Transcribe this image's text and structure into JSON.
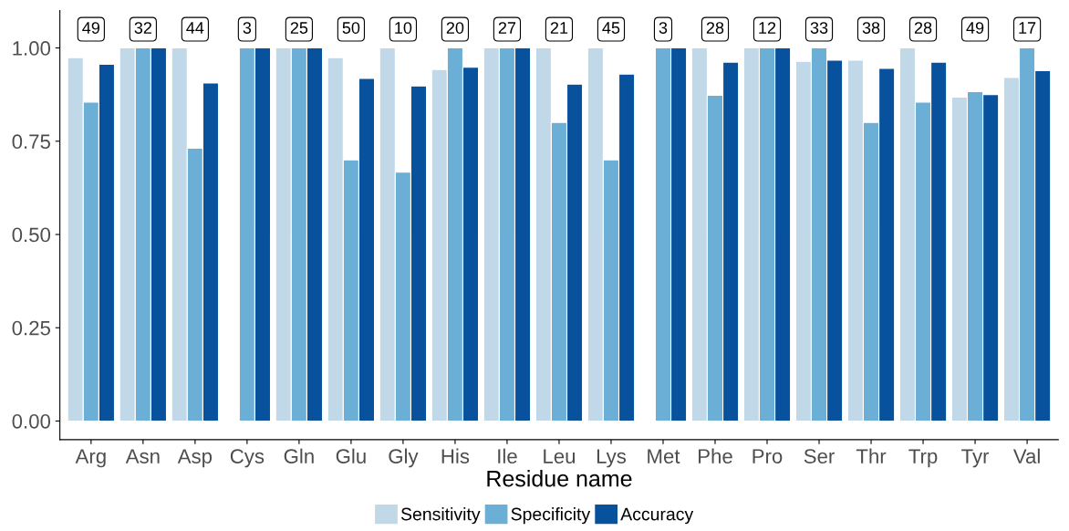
{
  "chart_data": {
    "type": "bar",
    "xlabel": "Residue name",
    "categories": [
      "Arg",
      "Asn",
      "Asp",
      "Cys",
      "Gln",
      "Glu",
      "Gly",
      "His",
      "Ile",
      "Leu",
      "Lys",
      "Met",
      "Phe",
      "Pro",
      "Ser",
      "Thr",
      "Trp",
      "Tyr",
      "Val"
    ],
    "series": [
      {
        "name": "Sensitivity",
        "color": "#c0d8e8",
        "values": [
          0.974,
          1,
          1,
          null,
          1,
          0.974,
          1,
          0.942,
          1,
          1,
          1,
          null,
          1,
          1,
          0.964,
          0.967,
          1,
          0.868,
          0.921
        ]
      },
      {
        "name": "Specificity",
        "color": "#6baed6",
        "values": [
          0.855,
          1,
          0.731,
          1,
          1,
          0.7,
          0.667,
          1,
          1,
          0.8,
          0.7,
          1,
          0.873,
          1,
          1,
          0.8,
          0.855,
          0.883,
          1
        ]
      },
      {
        "name": "Accuracy",
        "color": "#08519c",
        "values": [
          0.956,
          1,
          0.906,
          1,
          1,
          0.918,
          0.898,
          0.948,
          1,
          0.903,
          0.93,
          1,
          0.962,
          1,
          0.967,
          0.945,
          0.962,
          0.875,
          0.939
        ]
      }
    ],
    "annotations": [
      {
        "text": "49",
        "x": "Arg",
        "y": 1.05
      },
      {
        "text": "32",
        "x": "Asn",
        "y": 1.05
      },
      {
        "text": "44",
        "x": "Asp",
        "y": 1.05
      },
      {
        "text": "3",
        "x": "Cys",
        "y": 1.05
      },
      {
        "text": "25",
        "x": "Gln",
        "y": 1.05
      },
      {
        "text": "50",
        "x": "Glu",
        "y": 1.05
      },
      {
        "text": "10",
        "x": "Gly",
        "y": 1.05
      },
      {
        "text": "20",
        "x": "His",
        "y": 1.05
      },
      {
        "text": "27",
        "x": "Ile",
        "y": 1.05
      },
      {
        "text": "21",
        "x": "Leu",
        "y": 1.05
      },
      {
        "text": "45",
        "x": "Lys",
        "y": 1.05
      },
      {
        "text": "3",
        "x": "Met",
        "y": 1.05
      },
      {
        "text": "28",
        "x": "Phe",
        "y": 1.05
      },
      {
        "text": "12",
        "x": "Pro",
        "y": 1.05
      },
      {
        "text": "33",
        "x": "Ser",
        "y": 1.05
      },
      {
        "text": "38",
        "x": "Thr",
        "y": 1.05
      },
      {
        "text": "28",
        "x": "Trp",
        "y": 1.05
      },
      {
        "text": "49",
        "x": "Tyr",
        "y": 1.05
      },
      {
        "text": "17",
        "x": "Val",
        "y": 1.05
      }
    ],
    "ylim": [
      -0.05,
      1.1
    ],
    "yticks": [
      {
        "value": 0,
        "label": "0.00"
      },
      {
        "value": 0.25,
        "label": "0.25"
      },
      {
        "value": 0.5,
        "label": "0.50"
      },
      {
        "value": 0.75,
        "label": "0.75"
      },
      {
        "value": 1,
        "label": "1.00"
      }
    ],
    "grid": false,
    "legend": "bottom"
  }
}
